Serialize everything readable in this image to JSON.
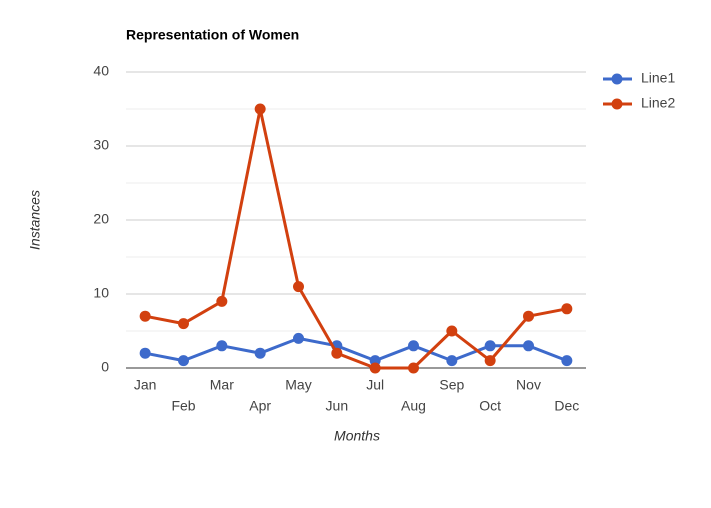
{
  "chart_data": {
    "type": "line",
    "title": "Representation of Women",
    "x_label": "Months",
    "y_label": "Instances",
    "categories": [
      "Jan",
      "Feb",
      "Mar",
      "Apr",
      "May",
      "Jun",
      "Jul",
      "Aug",
      "Sep",
      "Oct",
      "Nov",
      "Dec"
    ],
    "series": [
      {
        "name": "Line1",
        "color": "#3d6acb",
        "values": [
          2,
          1,
          3,
          2,
          4,
          3,
          1,
          3,
          1,
          3,
          3,
          1
        ]
      },
      {
        "name": "Line2",
        "color": "#d2400f",
        "values": [
          7,
          6,
          9,
          35,
          11,
          2,
          0,
          0,
          5,
          1,
          7,
          8
        ]
      }
    ],
    "ylim": [
      0,
      40
    ],
    "yticks": [
      0,
      10,
      20,
      30,
      40
    ],
    "minor_yticks": [
      5,
      15,
      25,
      35
    ],
    "grid": true,
    "legend": "right"
  }
}
